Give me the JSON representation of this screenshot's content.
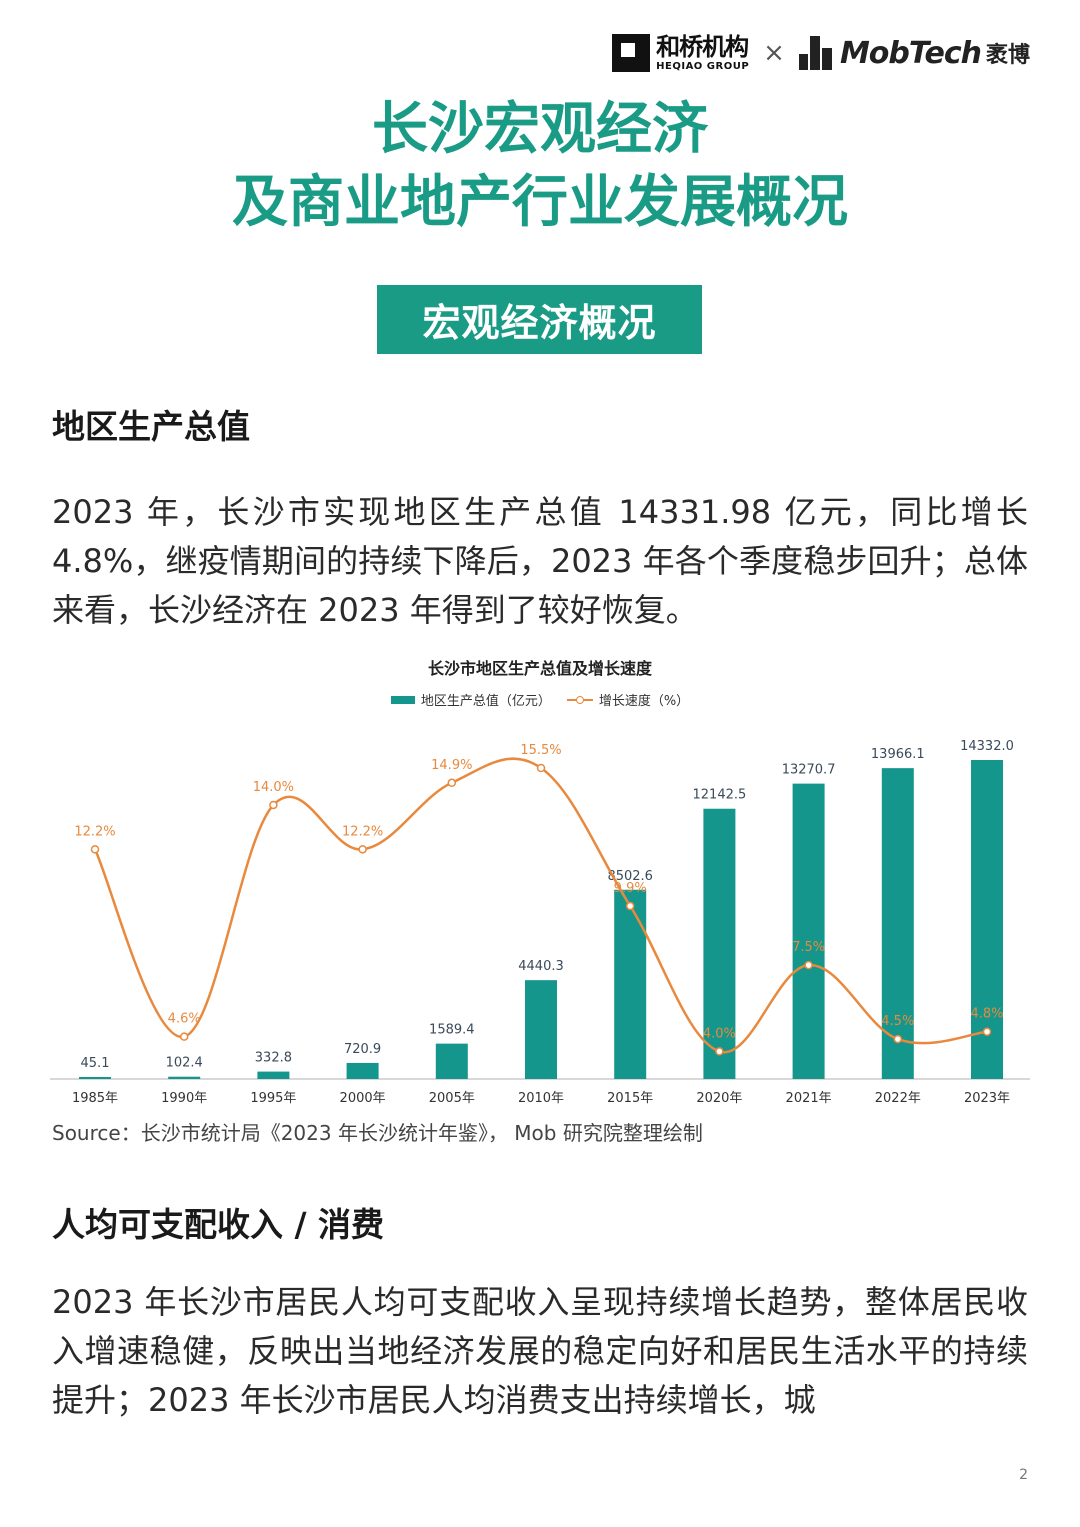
{
  "header": {
    "logo_heqiao_cn": "和桥机构",
    "logo_heqiao_en": "HEQIAO GROUP",
    "logo_separator": "×",
    "logo_mobtech": "MobTech",
    "logo_mobtech_cn": "袤博"
  },
  "title": {
    "line1": "长沙宏观经济",
    "line2": "及商业地产行业发展概况"
  },
  "section_banner": "宏观经济概况",
  "gdp_section": {
    "heading": "地区生产总值",
    "paragraph": "2023 年，长沙市实现地区生产总值 14331.98 亿元，同比增长 4.8%，继疫情期间的持续下降后，2023 年各个季度稳步回升；总体来看，长沙经济在 2023 年得到了较好恢复。"
  },
  "chart_data": {
    "type": "bar",
    "title": "长沙市地区生产总值及增长速度",
    "categories": [
      "1985年",
      "1990年",
      "1995年",
      "2000年",
      "2005年",
      "2010年",
      "2015年",
      "2020年",
      "2021年",
      "2022年",
      "2023年"
    ],
    "series": [
      {
        "name": "地区生产总值（亿元）",
        "type": "bar",
        "color": "#14968c",
        "values": [
          45.1,
          102.4,
          332.8,
          720.9,
          1589.4,
          4440.3,
          8502.6,
          12142.5,
          13270.7,
          13966.1,
          14332.0
        ],
        "labels": [
          "45.1",
          "102.4",
          "332.8",
          "720.9",
          "1589.4",
          "4440.3",
          "8502.6",
          "12142.5",
          "13270.7",
          "13966.1",
          "14332.0"
        ]
      },
      {
        "name": "增长速度（%）",
        "type": "line",
        "color": "#e8893d",
        "values": [
          12.2,
          4.6,
          14.0,
          12.2,
          14.9,
          15.5,
          9.9,
          4.0,
          7.5,
          4.5,
          4.8
        ],
        "labels": [
          "12.2%",
          "4.6%",
          "14.0%",
          "12.2%",
          "14.9%",
          "15.5%",
          "9.9%",
          "4.0%",
          "7.5%",
          "4.5%",
          "4.8%"
        ]
      }
    ],
    "legend_position": "top-center",
    "grid": false,
    "ylim_bar": [
      0,
      16000
    ],
    "ylim_line": [
      0,
      17
    ]
  },
  "source_note": "Source：长沙市统计局《2023 年长沙统计年鉴》， Mob 研究院整理绘制",
  "income_section": {
    "heading": "人均可支配收入 / 消费",
    "paragraph": "2023 年长沙市居民人均可支配收入呈现持续增长趋势，整体居民收入增速稳健，反映出当地经济发展的稳定向好和居民生活水平的持续提升；2023 年长沙市居民人均消费支出持续增长，城"
  },
  "page_number": "2"
}
